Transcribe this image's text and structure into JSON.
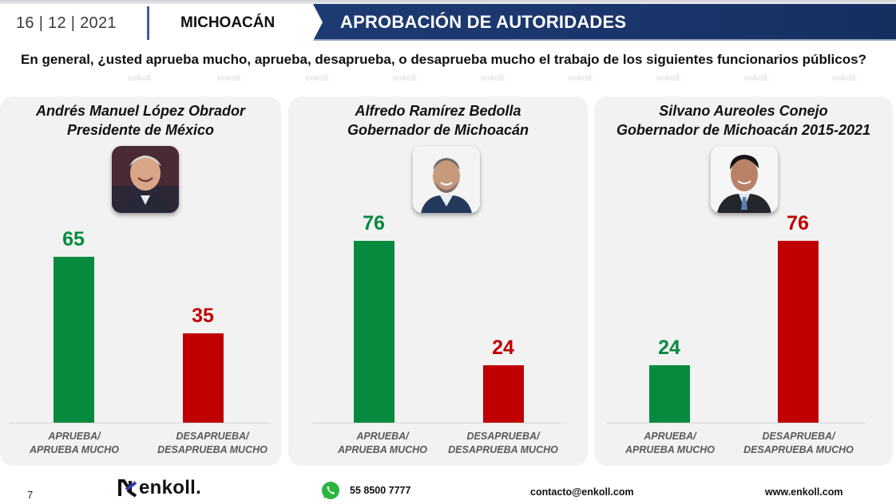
{
  "header": {
    "date": "16 | 12 | 2021",
    "region": "MICHOACÁN",
    "title": "APROBACIÓN DE AUTORIDADES"
  },
  "question": "En general, ¿usted aprueba mucho, aprueba, desaprueba, o desaprueba mucho el trabajo de los siguientes funcionarios públicos?",
  "watermark_text": "enkoll.",
  "colors": {
    "approve": "#058a3e",
    "disapprove": "#c00000",
    "banner": "#1d3b72",
    "panel": "#f2f2f2"
  },
  "chart_data": [
    {
      "type": "bar",
      "title": "Andrés Manuel López Obrador",
      "subtitle": "Presidente de México",
      "categories": [
        "APRUEBA/\nAPRUEBA MUCHO",
        "DESAPRUEBA/\nDESAPRUEBA MUCHO"
      ],
      "values": [
        65,
        35
      ],
      "colors": [
        "#058a3e",
        "#c00000"
      ],
      "ylim": [
        0,
        100
      ],
      "grid": false,
      "xlabel": "",
      "ylabel": ""
    },
    {
      "type": "bar",
      "title": "Alfredo Ramírez Bedolla",
      "subtitle": "Gobernador de Michoacán",
      "categories": [
        "APRUEBA/\nAPRUEBA MUCHO",
        "DESAPRUEBA/\nDESAPRUEBA MUCHO"
      ],
      "values": [
        76,
        24
      ],
      "colors": [
        "#058a3e",
        "#c00000"
      ],
      "ylim": [
        0,
        100
      ],
      "grid": false,
      "xlabel": "",
      "ylabel": ""
    },
    {
      "type": "bar",
      "title": "Silvano Aureoles Conejo",
      "subtitle": "Gobernador de Michoacán 2015-2021",
      "categories": [
        "APRUEBA/\nAPRUEBA MUCHO",
        "DESAPRUEBA/\nDESAPRUEBA MUCHO"
      ],
      "values": [
        24,
        76
      ],
      "colors": [
        "#058a3e",
        "#c00000"
      ],
      "ylim": [
        0,
        100
      ],
      "grid": false,
      "xlabel": "",
      "ylabel": ""
    }
  ],
  "panels": [
    {
      "name": "Andrés Manuel López Obrador",
      "role": "Presidente de México",
      "photo_icon": "portrait-amlo",
      "cat1_l1": "APRUEBA/",
      "cat1_l2": "APRUEBA MUCHO",
      "cat2_l1": "DESAPRUEBA/",
      "cat2_l2": "DESAPRUEBA MUCHO",
      "v1": "65",
      "v2": "35"
    },
    {
      "name": "Alfredo Ramírez Bedolla",
      "role": "Gobernador de Michoacán",
      "photo_icon": "portrait-bedolla",
      "cat1_l1": "APRUEBA/",
      "cat1_l2": "APRUEBA MUCHO",
      "cat2_l1": "DESAPRUEBA/",
      "cat2_l2": "DESAPRUEBA MUCHO",
      "v1": "76",
      "v2": "24"
    },
    {
      "name": "Silvano Aureoles Conejo",
      "role": "Gobernador de Michoacán 2015-2021",
      "photo_icon": "portrait-aureoles",
      "cat1_l1": "APRUEBA/",
      "cat1_l2": "APRUEBA MUCHO",
      "cat2_l1": "DESAPRUEBA/",
      "cat2_l2": "DESAPRUEBA MUCHO",
      "v1": "24",
      "v2": "76"
    }
  ],
  "footer": {
    "page_number": "7",
    "logo_text": "enkoll.",
    "phone_icon": "whatsapp-icon",
    "phone": "55 8500 7777",
    "email": "contacto@enkoll.com",
    "website": "www.enkoll.com"
  }
}
